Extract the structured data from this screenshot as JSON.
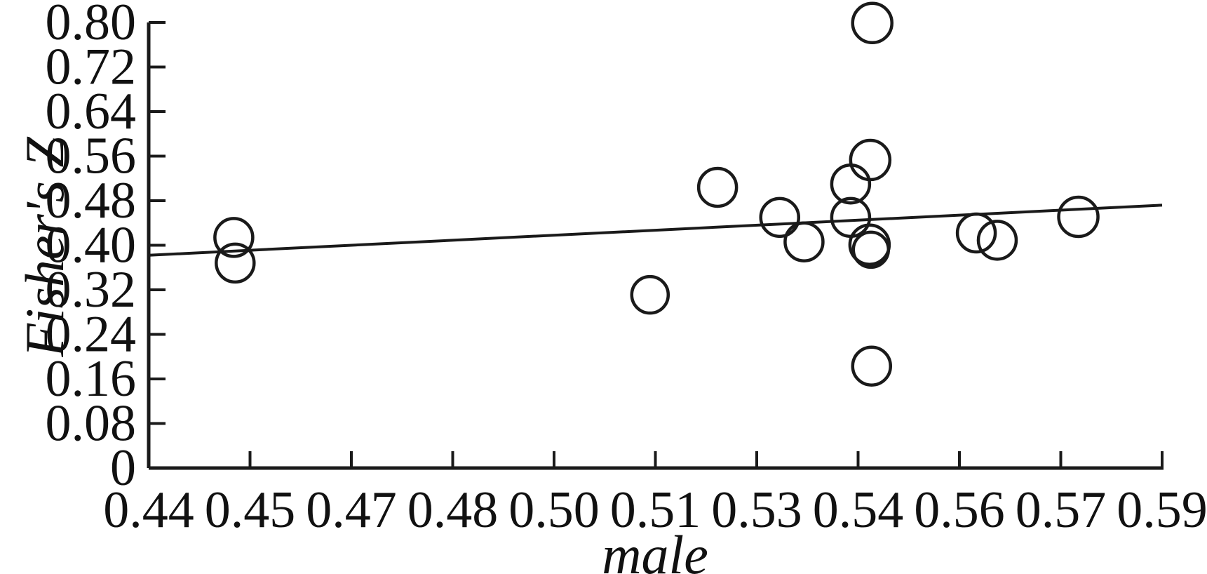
{
  "figure": {
    "background_color": "#ffffff",
    "ink_color": "#1a1a1a"
  },
  "chart_data": {
    "type": "scatter",
    "subtype": "meta-regression-bubble-plot",
    "title": "",
    "xlabel": "male",
    "ylabel": "Fisher's Z",
    "xlim": [
      0.44,
      0.59
    ],
    "ylim": [
      0,
      0.8
    ],
    "grid": false,
    "legend": null,
    "marker": "open-circle",
    "x_tick_labels": [
      "0.44",
      "0.45",
      "0.47",
      "0.48",
      "0.50",
      "0.51",
      "0.53",
      "0.54",
      "0.56",
      "0.57",
      "0.59"
    ],
    "x_tick_values": [
      0.44,
      0.455,
      0.47,
      0.485,
      0.5,
      0.515,
      0.53,
      0.545,
      0.56,
      0.575,
      0.59
    ],
    "y_tick_labels_top_to_bottom": [
      "0.80",
      "0.72",
      "0.64",
      "0.56",
      "0.48",
      "0.40",
      "0.32",
      "0.24",
      "0.16",
      "0.08",
      "0"
    ],
    "y_tick_values_top_to_bottom": [
      0.8,
      0.72,
      0.64,
      0.56,
      0.48,
      0.4,
      0.32,
      0.24,
      0.16,
      0.08,
      0
    ],
    "points": [
      {
        "x": 0.4526,
        "y": 0.414,
        "r": 27
      },
      {
        "x": 0.4528,
        "y": 0.368,
        "r": 27
      },
      {
        "x": 0.5142,
        "y": 0.311,
        "r": 26
      },
      {
        "x": 0.5242,
        "y": 0.504,
        "r": 27
      },
      {
        "x": 0.5334,
        "y": 0.45,
        "r": 27
      },
      {
        "x": 0.537,
        "y": 0.406,
        "r": 27
      },
      {
        "x": 0.5439,
        "y": 0.51,
        "r": 27
      },
      {
        "x": 0.5439,
        "y": 0.45,
        "r": 27
      },
      {
        "x": 0.5468,
        "y": 0.553,
        "r": 28
      },
      {
        "x": 0.5467,
        "y": 0.401,
        "r": 28
      },
      {
        "x": 0.5469,
        "y": 0.392,
        "r": 25
      },
      {
        "x": 0.5471,
        "y": 0.799,
        "r": 28
      },
      {
        "x": 0.547,
        "y": 0.183,
        "r": 27
      },
      {
        "x": 0.5625,
        "y": 0.422,
        "r": 27
      },
      {
        "x": 0.5656,
        "y": 0.409,
        "r": 27
      },
      {
        "x": 0.5776,
        "y": 0.451,
        "r": 28
      }
    ],
    "regression_line": {
      "x": [
        0.44,
        0.59
      ],
      "y": [
        0.382,
        0.472
      ]
    }
  }
}
